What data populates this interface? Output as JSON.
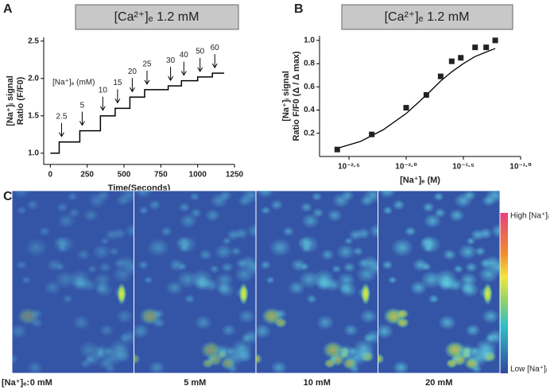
{
  "panels": [
    "A",
    "B",
    "C"
  ],
  "chart_data": [
    {
      "type": "line",
      "title": "[Ca²⁺]ₑ 1.2 mM",
      "xlabel": "Time(Seconds)",
      "ylabel": [
        "[Na⁺]ᵢ signal",
        "Ratio (F/F0)"
      ],
      "x": [
        0,
        60,
        60,
        200,
        200,
        340,
        340,
        440,
        440,
        540,
        540,
        640,
        640,
        800,
        800,
        890,
        890,
        1000,
        1000,
        1100,
        1100,
        1180
      ],
      "values": [
        1.0,
        1.0,
        1.15,
        1.15,
        1.3,
        1.3,
        1.5,
        1.5,
        1.6,
        1.6,
        1.75,
        1.75,
        1.85,
        1.85,
        1.9,
        1.9,
        1.97,
        1.97,
        2.02,
        2.02,
        2.07,
        2.07
      ],
      "color": "#000000",
      "xlim": [
        -45,
        1250
      ],
      "xticks": [
        0,
        250,
        500,
        750,
        1000,
        1250
      ],
      "ylim": [
        0.85,
        2.55
      ],
      "yticks": [
        {
          "value": 1.0,
          "label": "1.0"
        },
        {
          "value": 1.5,
          "label": "1.5"
        },
        {
          "value": 2.0,
          "label": "2.0"
        },
        2.5
      ],
      "annotation_title": "[Na⁺]ₑ (mM)",
      "annotations": [
        {
          "label": "2.5",
          "x": 60
        },
        {
          "label": "5",
          "x": 200
        },
        {
          "label": "10",
          "x": 340
        },
        {
          "label": "15",
          "x": 440
        },
        {
          "label": "20",
          "x": 540
        },
        {
          "label": "25",
          "x": 640
        },
        {
          "label": "30",
          "x": 800
        },
        {
          "label": "40",
          "x": 890
        },
        {
          "label": "50",
          "x": 1000
        },
        {
          "label": "60",
          "x": 1100
        }
      ]
    },
    {
      "type": "scatter",
      "title": "[Ca²⁺]ₑ 1.2 mM",
      "xlabel": "[Na⁺]ₑ (M)",
      "ylabel": [
        "[Na⁺]ᵢ signal",
        "Ratio F/F0 (Δ / Δ max)"
      ],
      "log_x": true,
      "x": [
        0.0025,
        0.005,
        0.01,
        0.015,
        0.02,
        0.025,
        0.03,
        0.04,
        0.05,
        0.06
      ],
      "values": [
        0.06,
        0.19,
        0.42,
        0.53,
        0.69,
        0.82,
        0.85,
        0.94,
        0.94,
        1.0
      ],
      "color": "#222222",
      "fit": {
        "x": [
          0.0025,
          0.004,
          0.0063,
          0.01,
          0.0126,
          0.0158,
          0.02,
          0.0251,
          0.0316,
          0.0398,
          0.05,
          0.06
        ],
        "values": [
          0.07,
          0.13,
          0.23,
          0.37,
          0.46,
          0.55,
          0.65,
          0.73,
          0.8,
          0.86,
          0.9,
          0.93
        ]
      },
      "xlim": [
        0.00175,
        0.1
      ],
      "xticks": [
        {
          "value": 0.0031623,
          "label": "10⁻²·⁵"
        },
        {
          "value": 0.01,
          "label": "10⁻²·⁰"
        },
        {
          "value": 0.0316228,
          "label": "10⁻¹·⁵"
        },
        {
          "value": 0.1,
          "label": "10⁻¹·⁰"
        }
      ],
      "ylim": [
        0,
        1.04
      ],
      "yticks": [
        0.2,
        0.4,
        0.6,
        0.8,
        {
          "value": 1.0,
          "label": "1.0"
        }
      ]
    }
  ],
  "images": {
    "condition_label": "[Na⁺]ₑ:",
    "conditions": [
      "0 mM",
      "5 mM",
      "10 mM",
      "20 mM"
    ],
    "colorbar": {
      "high": "High [Na⁺]ᵢ",
      "low": "Low [Na⁺]ᵢ"
    }
  }
}
